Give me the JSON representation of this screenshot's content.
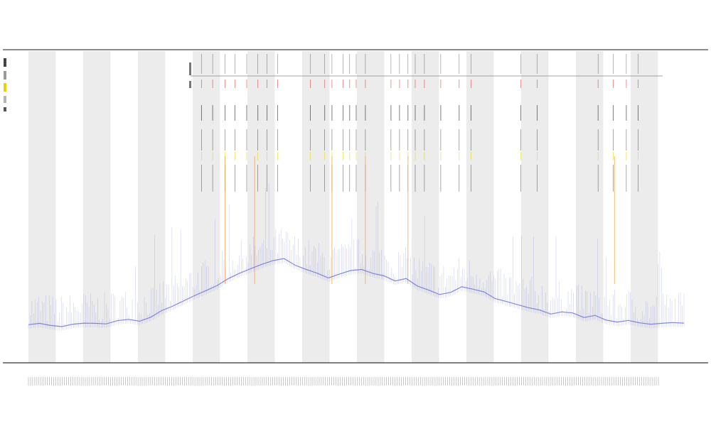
{
  "chart_data": {
    "type": "line",
    "title": "",
    "subtitle_lines": [
      "",
      ""
    ],
    "xlabel": "",
    "ylabel": "",
    "grid": false,
    "legend": "top-left",
    "x_range": [
      0,
      1
    ],
    "y_range": [
      0,
      1
    ],
    "band_count": 12,
    "colors": {
      "signal": "#6f74d8",
      "band": "#ececec",
      "tick_dark": "#333333",
      "tick_red": "#e23b3b",
      "tick_yellow": "#e8d400",
      "tick_orange": "#f0a040",
      "axis": "#555555"
    },
    "series": [
      {
        "values": [
          0.055,
          0.06,
          0.052,
          0.048,
          0.057,
          0.061,
          0.06,
          0.058,
          0.07,
          0.075,
          0.068,
          0.083,
          0.108,
          0.125,
          0.145,
          0.165,
          0.183,
          0.202,
          0.228,
          0.248,
          0.265,
          0.281,
          0.295,
          0.303,
          0.278,
          0.262,
          0.248,
          0.23,
          0.245,
          0.258,
          0.262,
          0.247,
          0.238,
          0.219,
          0.228,
          0.2,
          0.185,
          0.168,
          0.176,
          0.197,
          0.188,
          0.178,
          0.153,
          0.142,
          0.13,
          0.119,
          0.11,
          0.095,
          0.103,
          0.099,
          0.082,
          0.09,
          0.072,
          0.065,
          0.071,
          0.062,
          0.057,
          0.06,
          0.063,
          0.061
        ]
      }
    ],
    "event_columns": [
      0.264,
      0.281,
      0.3,
      0.315,
      0.333,
      0.35,
      0.364,
      0.38,
      0.43,
      0.452,
      0.463,
      0.48,
      0.49,
      0.5,
      0.514,
      0.553,
      0.566,
      0.579,
      0.59,
      0.604,
      0.629,
      0.657,
      0.675,
      0.751,
      0.776,
      0.869,
      0.892,
      0.912,
      0.93
    ],
    "highlight_columns": [
      0.3,
      0.345,
      0.463,
      0.514,
      0.579,
      0.894
    ]
  }
}
